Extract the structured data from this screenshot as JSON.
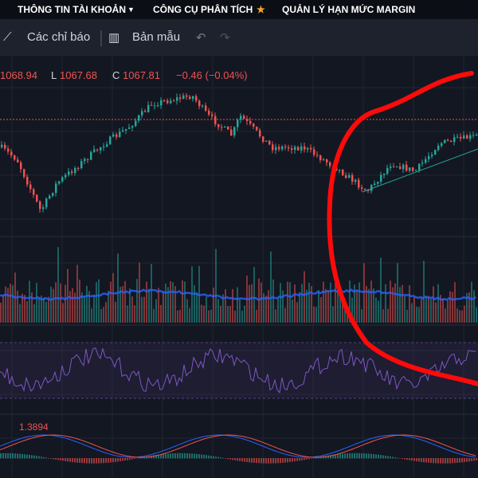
{
  "menu": {
    "items": [
      "THÔNG TIN TÀI KHOẢN",
      "CÔNG CỤ PHÂN TÍCH",
      "QUẢN LÝ HẠN MỨC MARGIN"
    ]
  },
  "toolbar": {
    "indicators": "Các chỉ báo",
    "templates": "Bản mẫu"
  },
  "legend": {
    "high": "1068.94",
    "low_label": "L",
    "low": "1067.68",
    "close_label": "C",
    "close": "1067.81",
    "change": "−0.46 (−0.04%)"
  },
  "macd": {
    "value": "1.3894"
  }
}
